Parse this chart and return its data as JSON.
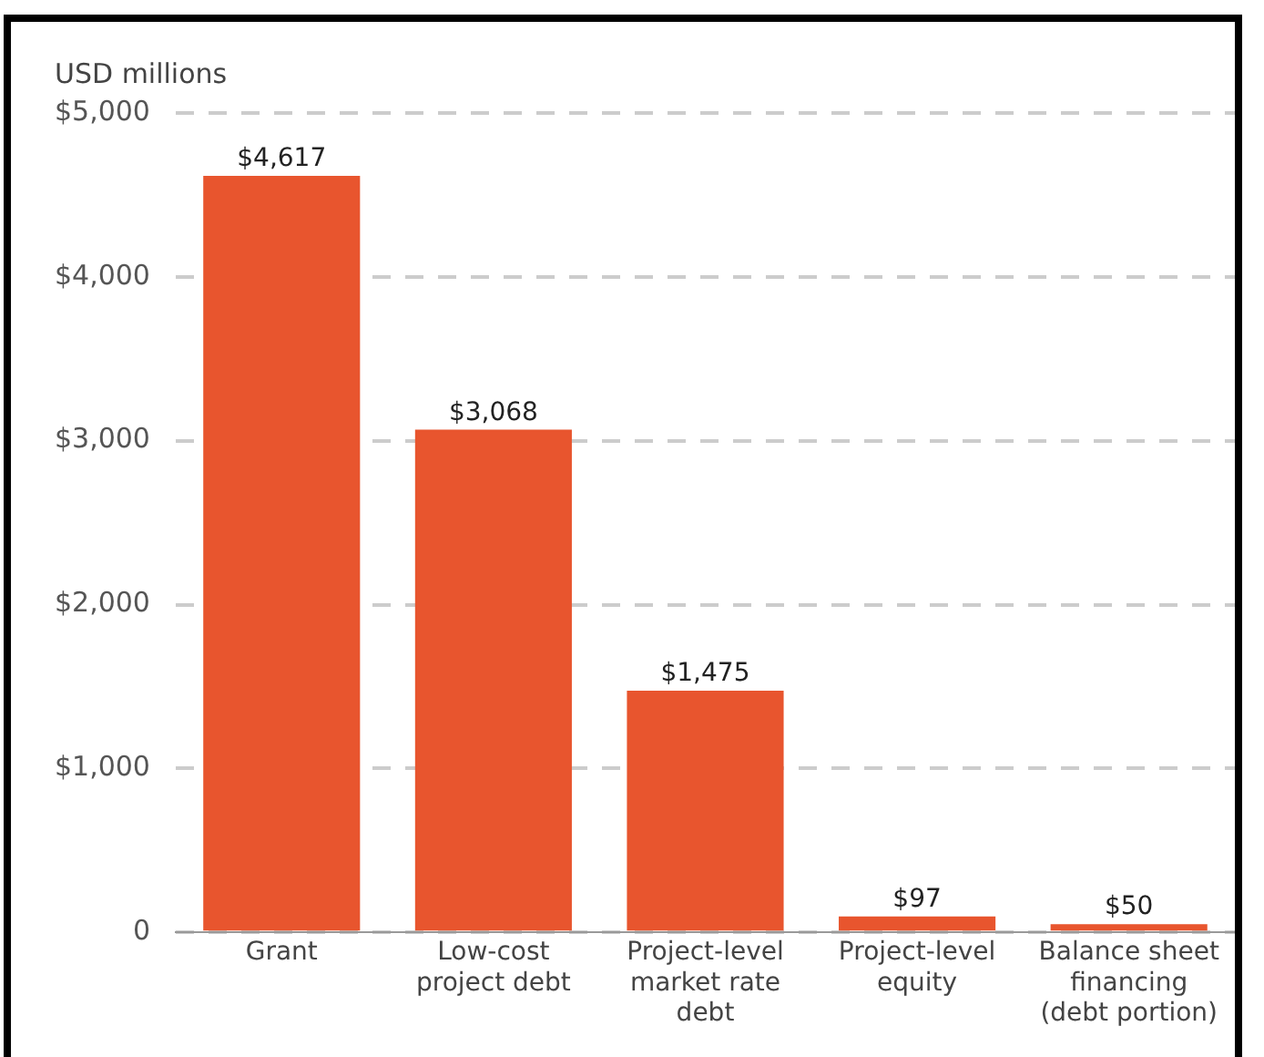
{
  "chart_data": {
    "type": "bar",
    "ylabel": "USD millions",
    "categories": [
      "Grant",
      "Low-cost project debt",
      "Project-level market rate debt",
      "Project-level equity",
      "Balance sheet financing (debt portion)"
    ],
    "values": [
      4617,
      3068,
      1475,
      97,
      50
    ],
    "value_labels": [
      "$4,617",
      "$3,068",
      "$1,475",
      "$97",
      "$50"
    ],
    "color": "#e8552e",
    "ylim": [
      0,
      5000
    ],
    "yticks": [
      {
        "value": 0,
        "label": "0"
      },
      {
        "value": 1000,
        "label": "$1,000"
      },
      {
        "value": 2000,
        "label": "$2,000"
      },
      {
        "value": 3000,
        "label": "$3,000"
      },
      {
        "value": 4000,
        "label": "$4,000"
      },
      {
        "value": 5000,
        "label": "$5,000"
      }
    ],
    "grid": "y",
    "legend": false
  }
}
